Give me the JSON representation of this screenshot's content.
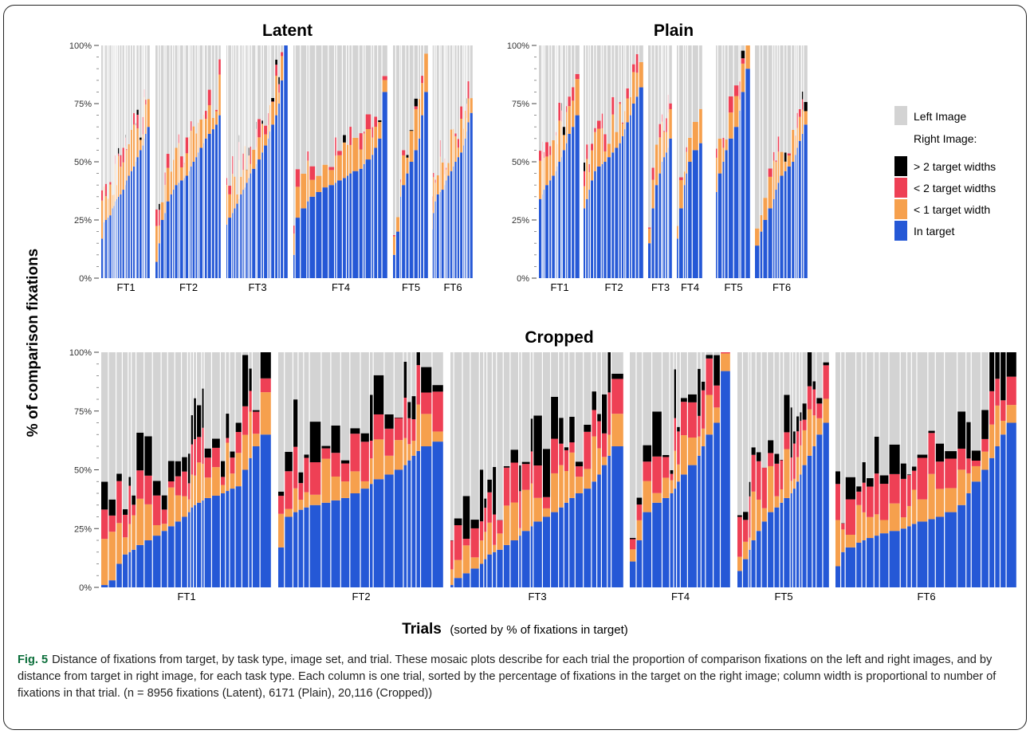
{
  "figure": {
    "ylabel": "% of comparison fixations",
    "xlabel_bold": "Trials",
    "xlabel_rest": "(sorted by % of fixations in target)"
  },
  "legend": {
    "left_image": "Left Image",
    "right_image_heading": "Right Image:",
    "items": [
      {
        "label": "> 2 target widths",
        "color": "#000000"
      },
      {
        "label": "< 2 target widths",
        "color": "#ee4055"
      },
      {
        "label": "< 1 target width",
        "color": "#f6a04d"
      },
      {
        "label": "In target",
        "color": "#2558d6"
      }
    ],
    "left_color": "#d3d3d3"
  },
  "caption": {
    "label": "Fig. 5",
    "text": "Distance of fixations from target, by task type, image set, and trial. These mosaic plots describe for each trial the proportion of comparison fixations on the left and right images, and by distance from target in right image, for each task type. Each column is one trial, sorted by the percentage of fixations in the target on the right image; column width is proportional to number of fixations in that trial. (n = 8956 fixations (Latent), 6171 (Plain), 20,116 (Cropped))"
  },
  "chart_data": [
    {
      "type": "bar",
      "title": "Latent",
      "y_ticks": [
        "0%",
        "25%",
        "50%",
        "75%",
        "100%"
      ],
      "ylim": [
        0,
        100
      ],
      "groups": [
        {
          "name": "FT1",
          "in_target": [
            17,
            24,
            25,
            26,
            27,
            30,
            31,
            33,
            34,
            35,
            36,
            38,
            40,
            42,
            44,
            46,
            48,
            50,
            52,
            55,
            57,
            60,
            62,
            65
          ]
        },
        {
          "name": "FT2",
          "in_target": [
            7,
            15,
            25,
            28,
            33,
            36,
            38,
            40,
            41,
            42,
            43,
            44,
            46,
            48,
            50,
            52,
            54,
            56,
            58,
            60,
            62,
            64,
            66,
            70
          ]
        },
        {
          "name": "FT3",
          "in_target": [
            23,
            26,
            28,
            30,
            32,
            34,
            36,
            38,
            39,
            41,
            43,
            45,
            47,
            49,
            51,
            54,
            57,
            60,
            63,
            66,
            70,
            75,
            85,
            100
          ]
        },
        {
          "name": "FT4",
          "in_target": [
            10,
            26,
            30,
            33,
            35,
            37,
            39,
            40,
            41,
            42,
            43,
            44,
            45,
            46,
            47,
            49,
            51,
            53,
            56,
            60,
            80
          ]
        },
        {
          "name": "FT5",
          "in_target": [
            10,
            20,
            35,
            40,
            45,
            50,
            55,
            60,
            70,
            80
          ]
        },
        {
          "name": "FT6",
          "in_target": [
            21,
            28,
            33,
            36,
            37,
            38,
            40,
            42,
            44,
            46,
            48,
            50,
            52,
            54,
            57,
            60,
            63,
            67,
            71
          ]
        }
      ]
    },
    {
      "type": "bar",
      "title": "Plain",
      "y_ticks": [
        "0%",
        "25%",
        "50%",
        "75%",
        "100%"
      ],
      "ylim": [
        0,
        100
      ],
      "groups": [
        {
          "name": "FT1",
          "in_target": [
            34,
            36,
            38,
            40,
            42,
            44,
            46,
            48,
            50,
            52,
            55,
            58,
            62,
            65,
            70
          ]
        },
        {
          "name": "FT2",
          "in_target": [
            30,
            34,
            38,
            42,
            46,
            48,
            49,
            50,
            52,
            54,
            56,
            58,
            61,
            64,
            67,
            70,
            75,
            78,
            82
          ]
        },
        {
          "name": "FT3",
          "in_target": [
            15,
            30,
            40,
            45,
            50,
            52,
            54,
            56,
            60
          ]
        },
        {
          "name": "FT4",
          "in_target": [
            17,
            30,
            40,
            45,
            50,
            55,
            58
          ]
        },
        {
          "name": "FT5",
          "in_target": [
            37,
            45,
            50,
            55,
            60,
            65,
            72,
            80,
            90
          ]
        },
        {
          "name": "FT6",
          "in_target": [
            14,
            20,
            25,
            30,
            34,
            38,
            41,
            44,
            46,
            48,
            50,
            53,
            56,
            59,
            62,
            66
          ]
        }
      ]
    },
    {
      "type": "bar",
      "title": "Cropped",
      "y_ticks": [
        "0%",
        "25%",
        "50%",
        "75%",
        "100%"
      ],
      "ylim": [
        0,
        100
      ],
      "groups": [
        {
          "name": "FT1",
          "in_target": [
            1,
            3,
            10,
            14,
            15,
            16,
            18,
            20,
            22,
            24,
            26,
            28,
            30,
            32,
            34,
            35,
            36,
            37,
            38,
            39,
            40,
            41,
            42,
            43,
            50,
            55,
            60,
            65
          ]
        },
        {
          "name": "FT2",
          "in_target": [
            17,
            30,
            32,
            33,
            34,
            35,
            36,
            37,
            38,
            40,
            42,
            44,
            46,
            48,
            50,
            52,
            54,
            56,
            58,
            60,
            62
          ]
        },
        {
          "name": "FT3",
          "in_target": [
            1,
            4,
            6,
            8,
            10,
            12,
            14,
            15,
            16,
            18,
            20,
            22,
            24,
            26,
            28,
            30,
            32,
            34,
            36,
            38,
            40,
            42,
            45,
            48,
            52,
            56,
            60
          ]
        },
        {
          "name": "FT4",
          "in_target": [
            11,
            20,
            32,
            36,
            38,
            40,
            42,
            45,
            48,
            52,
            56,
            60,
            65,
            70,
            92
          ]
        },
        {
          "name": "FT5",
          "in_target": [
            7,
            12,
            16,
            20,
            24,
            28,
            32,
            34,
            36,
            38,
            40,
            42,
            45,
            48,
            52,
            56,
            60,
            65,
            70
          ]
        },
        {
          "name": "FT6",
          "in_target": [
            9,
            15,
            17,
            19,
            20,
            21,
            22,
            23,
            24,
            25,
            26,
            27,
            28,
            29,
            30,
            32,
            35,
            40,
            45,
            50,
            55,
            60,
            65,
            70
          ]
        }
      ]
    }
  ]
}
